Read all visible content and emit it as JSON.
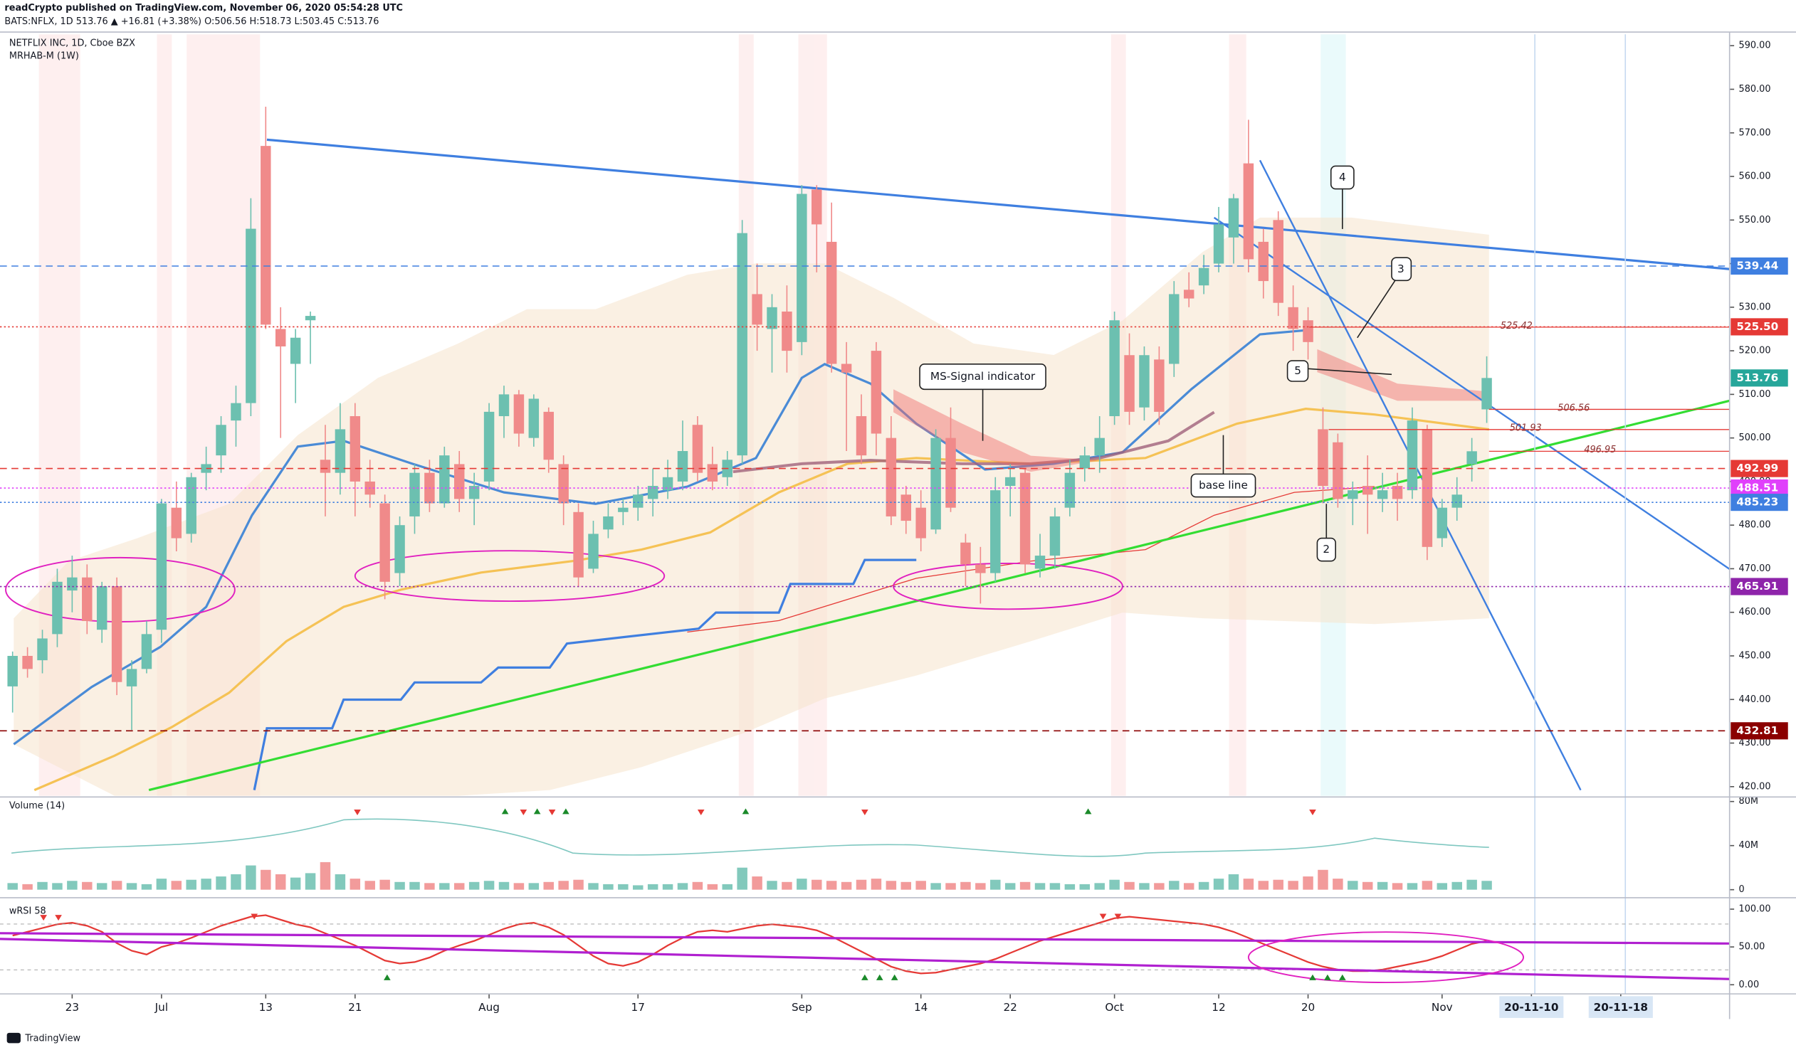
{
  "header": {
    "publisher": "readCrypto published on TradingView.com, November 06, 2020 05:54:28 UTC",
    "symbol_line": "BATS:NFLX, 1D 513.76 ▲ +16.81 (+3.38%) O:506.56 H:518.73 L:503.45 C:513.76"
  },
  "footer": {
    "brand": "TradingView"
  },
  "chart_data": [
    {
      "type": "candlestick",
      "title": "NETFLIX INC, 1D, Cboe BZX",
      "subtitle": "MRHAB-M (1W)",
      "x": [
        "06-17",
        "06-18",
        "06-19",
        "06-22",
        "06-23",
        "06-24",
        "06-25",
        "06-26",
        "06-29",
        "06-30",
        "07-01",
        "07-02",
        "07-06",
        "07-07",
        "07-08",
        "07-09",
        "07-10",
        "07-13",
        "07-14",
        "07-15",
        "07-16",
        "07-17",
        "07-20",
        "07-21",
        "07-22",
        "07-23",
        "07-24",
        "07-27",
        "07-28",
        "07-29",
        "07-30",
        "07-31",
        "08-03",
        "08-04",
        "08-05",
        "08-06",
        "08-07",
        "08-10",
        "08-11",
        "08-12",
        "08-13",
        "08-14",
        "08-17",
        "08-18",
        "08-19",
        "08-20",
        "08-21",
        "08-24",
        "08-25",
        "08-26",
        "08-27",
        "08-28",
        "08-31",
        "09-01",
        "09-02",
        "09-03",
        "09-04",
        "09-08",
        "09-09",
        "09-10",
        "09-11",
        "09-14",
        "09-15",
        "09-16",
        "09-17",
        "09-18",
        "09-21",
        "09-22",
        "09-23",
        "09-24",
        "09-25",
        "09-28",
        "09-29",
        "09-30",
        "10-01",
        "10-02",
        "10-05",
        "10-06",
        "10-07",
        "10-08",
        "10-09",
        "10-12",
        "10-13",
        "10-14",
        "10-15",
        "10-16",
        "10-19",
        "10-20",
        "10-21",
        "10-22",
        "10-23",
        "10-26",
        "10-27",
        "10-28",
        "10-29",
        "10-30",
        "11-02",
        "11-03",
        "11-04",
        "11-05",
        "11-06",
        "11-09",
        "11-10",
        "11-11",
        "11-12",
        "11-13",
        "11-16",
        "11-17",
        "11-18"
      ],
      "open": [
        443,
        450,
        449,
        455,
        465,
        468,
        456,
        466,
        443,
        447,
        456,
        484,
        478,
        492,
        496,
        504,
        508,
        567,
        525,
        517,
        527,
        495,
        492,
        505,
        490,
        485,
        469,
        482,
        492,
        485,
        494,
        486,
        490,
        505,
        510,
        500,
        506,
        494,
        483,
        470,
        479,
        483,
        484,
        486,
        488,
        490,
        503,
        494,
        491,
        496,
        533,
        525,
        529,
        522,
        557,
        545,
        517,
        505,
        520,
        500,
        487,
        484,
        479,
        500,
        476,
        471,
        469,
        489,
        492,
        470,
        473,
        484,
        493,
        496,
        505,
        519,
        507,
        518,
        517,
        534,
        535,
        540,
        546,
        563,
        545,
        550,
        530,
        527,
        502,
        499,
        486,
        489,
        486,
        489,
        488,
        502,
        477,
        484,
        494,
        506.56,
        null,
        null,
        null,
        null,
        null,
        null,
        null,
        null,
        null
      ],
      "high": [
        451,
        452,
        456,
        470,
        473,
        471,
        467,
        468,
        449,
        458,
        486,
        490,
        492,
        498,
        505,
        512,
        555,
        576,
        530,
        525,
        529,
        503,
        508,
        508,
        495,
        487,
        482,
        494,
        495,
        498,
        497,
        492,
        508,
        512,
        511,
        510,
        507,
        496,
        485,
        481,
        485,
        486,
        489,
        493,
        495,
        504,
        505,
        498,
        497,
        550,
        540,
        533,
        535,
        558,
        558,
        554,
        522,
        510,
        522,
        505,
        489,
        488,
        502,
        507,
        478,
        475,
        491,
        494,
        493,
        478,
        484,
        495,
        498,
        505,
        529,
        524,
        521,
        521,
        536,
        538,
        542,
        553,
        556,
        573,
        548,
        552,
        535,
        530,
        507,
        501,
        490,
        496,
        492,
        492,
        507,
        503,
        486,
        491,
        500,
        518.73,
        null,
        null,
        null,
        null,
        null,
        null,
        null,
        null,
        null
      ],
      "low": [
        437,
        445,
        446,
        452,
        460,
        455,
        453,
        441,
        433,
        446,
        453,
        474,
        476,
        488,
        492,
        498,
        505,
        525,
        500,
        508,
        517,
        482,
        487,
        482,
        484,
        463,
        466,
        478,
        483,
        484,
        483,
        480,
        488,
        500,
        498,
        498,
        492,
        480,
        466,
        469,
        477,
        480,
        481,
        482,
        486,
        488,
        490,
        488,
        489,
        494,
        520,
        515,
        515,
        519,
        538,
        515,
        497,
        494,
        496,
        480,
        478,
        474,
        478,
        483,
        466,
        462,
        467,
        482,
        469,
        468,
        470,
        482,
        490,
        492,
        503,
        503,
        504,
        503,
        514,
        530,
        533,
        538,
        540,
        538,
        532,
        528,
        520,
        518,
        485,
        484,
        480,
        478,
        483,
        481,
        486,
        472,
        475,
        481,
        490,
        503.45,
        null,
        null,
        null,
        null,
        null,
        null,
        null,
        null,
        null
      ],
      "close": [
        450,
        447,
        454,
        467,
        468,
        458,
        466,
        444,
        447,
        455,
        485,
        477,
        491,
        494,
        503,
        508,
        548,
        526,
        521,
        523,
        528,
        492,
        502,
        490,
        487,
        467,
        480,
        492,
        485,
        496,
        486,
        489,
        506,
        510,
        501,
        509,
        495,
        485,
        468,
        478,
        482,
        484,
        487,
        489,
        491,
        497,
        492,
        490,
        495,
        547,
        526,
        530,
        520,
        556,
        549,
        517,
        515,
        496,
        501,
        482,
        481,
        477,
        500,
        484,
        471,
        469,
        488,
        491,
        471,
        473,
        482,
        492,
        496,
        500,
        527,
        506,
        519,
        506,
        533,
        532,
        539,
        549,
        555,
        541,
        536,
        531,
        525,
        522,
        489,
        486,
        488,
        487,
        488,
        486,
        504,
        475,
        484,
        487,
        496.95,
        513.76,
        null,
        null,
        null,
        null,
        null,
        null,
        null,
        null,
        null
      ],
      "up_color": "#6cc0b0",
      "down_color": "#f08a8a",
      "ylim": [
        417.9,
        592.6
      ],
      "yticks": [
        {
          "value": 420,
          "label": "420.00"
        },
        {
          "value": 430,
          "label": "430.00"
        },
        {
          "value": 440,
          "label": "440.00"
        },
        {
          "value": 450,
          "label": "450.00"
        },
        {
          "value": 460,
          "label": "460.00"
        },
        {
          "value": 470,
          "label": "470.00"
        },
        {
          "value": 480,
          "label": "480.00"
        },
        {
          "value": 490,
          "label": "490.00"
        },
        {
          "value": 500,
          "label": "500.00"
        },
        {
          "value": 510,
          "label": "510.00"
        },
        {
          "value": 520,
          "label": "520.00"
        },
        {
          "value": 530,
          "label": "530.00"
        },
        {
          "value": 540,
          "label": "540.00"
        },
        {
          "value": 550,
          "label": "550.00"
        },
        {
          "value": 560,
          "label": "560.00"
        },
        {
          "value": 570,
          "label": "570.00"
        },
        {
          "value": 580,
          "label": "580.00"
        },
        {
          "value": 590,
          "label": "590.00"
        }
      ],
      "xticks": [
        {
          "value": "06-23",
          "label": "23"
        },
        {
          "value": "07-01",
          "label": "Jul"
        },
        {
          "value": "07-13",
          "label": "13"
        },
        {
          "value": "07-21",
          "label": "21"
        },
        {
          "value": "08-03",
          "label": "Aug"
        },
        {
          "value": "08-17",
          "label": "17"
        },
        {
          "value": "09-01",
          "label": "Sep"
        },
        {
          "value": "09-14",
          "label": "14"
        },
        {
          "value": "09-22",
          "label": "22"
        },
        {
          "value": "10-01",
          "label": "Oct"
        },
        {
          "value": "10-12",
          "label": "12"
        },
        {
          "value": "10-20",
          "label": "20"
        },
        {
          "value": "11-02",
          "label": "Nov"
        },
        {
          "value": "11-10",
          "label": "20-11-10"
        },
        {
          "value": "11-18",
          "label": "20-11-18"
        }
      ],
      "levels": [
        {
          "value": 539.44,
          "color": "#3f7fe0",
          "style": "dashed"
        },
        {
          "value": 525.5,
          "label": "525.50",
          "color": "#e53935",
          "style": "dotted"
        },
        {
          "value": 513.76,
          "color": "#26a69a",
          "style": "none"
        },
        {
          "value": 492.99,
          "color": "#e53935",
          "style": "dashed"
        },
        {
          "value": 488.51,
          "color": "#e040fb",
          "style": "dotted"
        },
        {
          "value": 485.23,
          "color": "#3f7fe0",
          "style": "dotted"
        },
        {
          "value": 465.91,
          "color": "#8e24aa",
          "style": "dotted"
        },
        {
          "value": 432.81,
          "color": "#8b0000",
          "style": "dashed"
        }
      ],
      "price_notes": [
        525.42,
        506.56,
        501.93,
        496.95
      ],
      "annotations": [
        "MS-Signal indicator",
        "base line",
        "2",
        "3",
        "4",
        "5"
      ]
    },
    {
      "type": "bar",
      "title": "Volume (14)",
      "values": [
        6,
        5,
        7,
        6,
        8,
        7,
        6,
        8,
        6,
        5,
        10,
        8,
        9,
        10,
        12,
        14,
        22,
        18,
        14,
        11,
        15,
        25,
        14,
        10,
        8,
        9,
        7,
        7,
        6,
        6,
        6,
        7,
        8,
        7,
        6,
        6,
        7,
        8,
        9,
        6,
        5,
        5,
        4,
        5,
        5,
        6,
        7,
        5,
        5,
        20,
        12,
        8,
        7,
        10,
        9,
        8,
        7,
        9,
        10,
        8,
        7,
        8,
        6,
        6,
        7,
        6,
        9,
        6,
        7,
        6,
        6,
        5,
        5,
        6,
        9,
        7,
        6,
        6,
        8,
        6,
        7,
        10,
        14,
        10,
        8,
        9,
        8,
        12,
        18,
        10,
        8,
        7,
        7,
        6,
        6,
        8,
        6,
        7,
        9,
        8,
        null,
        null,
        null,
        null,
        null,
        null,
        null,
        null,
        null
      ],
      "ylim": [
        -5.2,
        83.1
      ],
      "yticks": [
        0,
        {
          "value": 40,
          "label": "40M"
        },
        {
          "value": 80,
          "label": "80M"
        }
      ]
    },
    {
      "type": "line",
      "title": "wRSI 58",
      "color": "#e53935",
      "values": [
        65,
        70,
        75,
        80,
        82,
        78,
        70,
        55,
        45,
        40,
        50,
        55,
        62,
        70,
        78,
        84,
        90,
        92,
        86,
        80,
        76,
        68,
        60,
        52,
        42,
        32,
        28,
        30,
        36,
        45,
        52,
        58,
        66,
        74,
        80,
        82,
        76,
        66,
        52,
        38,
        28,
        25,
        30,
        40,
        52,
        62,
        70,
        72,
        70,
        74,
        78,
        80,
        78,
        76,
        72,
        64,
        54,
        44,
        34,
        24,
        18,
        15,
        16,
        20,
        24,
        28,
        34,
        42,
        50,
        58,
        64,
        70,
        76,
        82,
        88,
        90,
        88,
        86,
        84,
        82,
        80,
        76,
        70,
        62,
        54,
        46,
        38,
        30,
        24,
        20,
        18,
        18,
        20,
        24,
        28,
        32,
        38,
        46,
        54,
        58,
        null,
        null,
        null,
        null,
        null,
        null,
        null,
        null,
        null
      ],
      "ylim": [
        -12.1,
        112.1
      ],
      "yticks": [
        {
          "value": 0,
          "label": "0.00"
        },
        {
          "value": 50,
          "label": "50.00"
        },
        {
          "value": 100,
          "label": "100.00"
        }
      ]
    }
  ]
}
